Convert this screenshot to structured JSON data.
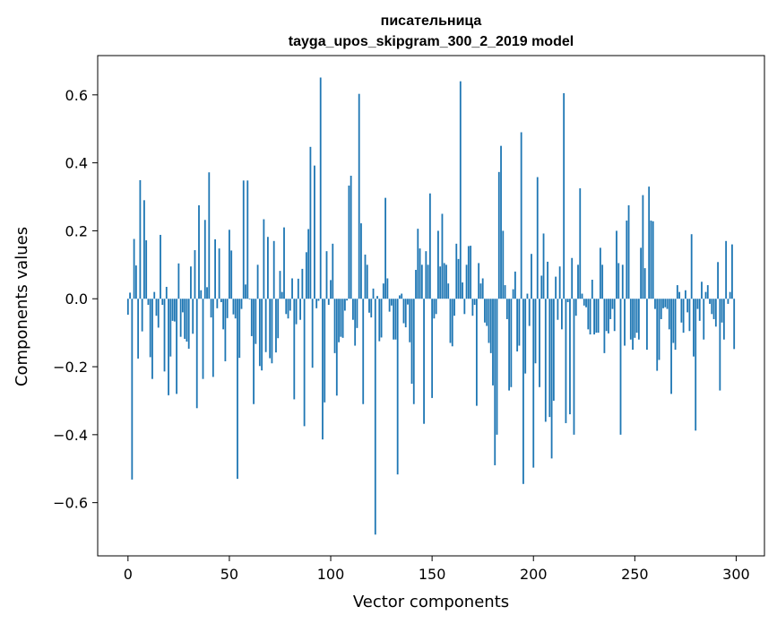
{
  "chart_data": {
    "type": "bar",
    "title": "писательница",
    "subtitle": "tayga_upos_skipgram_300_2_2019 model",
    "xlabel": "Vector components",
    "ylabel": "Components values",
    "xlim": [
      -14.95,
      313.95
    ],
    "ylim": [
      -0.7566,
      0.7156
    ],
    "xticks": [
      0,
      50,
      100,
      150,
      200,
      250,
      300
    ],
    "xtick_labels": [
      "0",
      "50",
      "100",
      "150",
      "200",
      "250",
      "300"
    ],
    "yticks": [
      -0.6,
      -0.4,
      -0.2,
      0.0,
      0.2,
      0.4,
      0.6
    ],
    "ytick_labels": [
      "−0.6",
      "−0.4",
      "−0.2",
      "0.0",
      "0.2",
      "0.4",
      "0.6"
    ],
    "bar_color": "#1f77b4",
    "grid": false,
    "values": [
      -0.047,
      0.018,
      -0.532,
      0.176,
      0.098,
      -0.176,
      0.349,
      -0.096,
      0.29,
      0.172,
      -0.018,
      -0.172,
      -0.236,
      0.02,
      -0.05,
      -0.085,
      0.188,
      -0.018,
      -0.214,
      0.035,
      -0.284,
      -0.17,
      -0.065,
      -0.067,
      -0.28,
      0.104,
      -0.112,
      -0.04,
      -0.118,
      -0.126,
      -0.147,
      0.095,
      -0.103,
      0.143,
      -0.322,
      0.275,
      0.025,
      -0.236,
      0.232,
      0.034,
      0.372,
      -0.055,
      -0.23,
      0.175,
      -0.028,
      0.148,
      -0.01,
      -0.09,
      -0.184,
      -0.057,
      0.203,
      0.142,
      -0.046,
      -0.058,
      -0.53,
      -0.174,
      -0.03,
      0.348,
      0.042,
      0.348,
      -0.002,
      -0.11,
      -0.31,
      -0.133,
      0.1,
      -0.198,
      -0.211,
      0.234,
      -0.157,
      0.182,
      -0.175,
      -0.19,
      0.17,
      -0.158,
      -0.116,
      0.082,
      0.02,
      0.21,
      -0.045,
      -0.058,
      -0.035,
      0.06,
      -0.296,
      -0.075,
      0.059,
      -0.062,
      0.088,
      -0.375,
      0.137,
      0.205,
      0.447,
      -0.203,
      0.392,
      -0.028,
      -0.006,
      0.651,
      -0.414,
      -0.305,
      0.14,
      -0.018,
      0.055,
      0.162,
      -0.16,
      -0.285,
      -0.128,
      -0.112,
      -0.115,
      -0.035,
      -0.005,
      0.333,
      0.362,
      -0.062,
      -0.138,
      -0.086,
      0.603,
      0.222,
      -0.31,
      0.13,
      0.1,
      -0.041,
      -0.055,
      0.03,
      -0.694,
      0.008,
      -0.125,
      -0.114,
      0.045,
      0.297,
      0.06,
      -0.038,
      -0.02,
      -0.12,
      -0.12,
      -0.517,
      0.01,
      0.015,
      -0.072,
      -0.084,
      -0.017,
      -0.128,
      -0.25,
      -0.31,
      0.085,
      0.206,
      0.148,
      0.1,
      -0.368,
      0.14,
      0.1,
      0.31,
      -0.292,
      -0.058,
      -0.045,
      0.2,
      0.095,
      0.25,
      0.105,
      0.1,
      0.045,
      -0.13,
      -0.14,
      -0.05,
      0.162,
      0.117,
      0.64,
      0.048,
      -0.045,
      0.1,
      0.155,
      0.156,
      -0.05,
      -0.018,
      -0.315,
      0.105,
      0.045,
      0.06,
      -0.07,
      -0.08,
      -0.13,
      -0.16,
      -0.255,
      -0.49,
      -0.4,
      0.373,
      0.45,
      0.2,
      0.04,
      -0.06,
      -0.27,
      -0.26,
      0.028,
      0.08,
      -0.155,
      -0.138,
      0.49,
      -0.545,
      -0.22,
      0.015,
      -0.08,
      0.132,
      -0.497,
      -0.19,
      0.358,
      -0.26,
      0.068,
      0.192,
      -0.362,
      0.109,
      -0.348,
      -0.47,
      -0.3,
      0.065,
      -0.062,
      0.095,
      -0.09,
      0.605,
      -0.366,
      -0.01,
      -0.34,
      0.12,
      -0.4,
      -0.05,
      0.1,
      0.325,
      0.015,
      -0.02,
      -0.025,
      -0.09,
      -0.105,
      0.056,
      -0.105,
      -0.1,
      -0.1,
      0.15,
      0.1,
      -0.16,
      -0.095,
      -0.102,
      -0.06,
      -0.03,
      -0.095,
      0.2,
      0.105,
      -0.4,
      0.1,
      -0.138,
      0.23,
      0.275,
      -0.12,
      -0.15,
      -0.115,
      -0.1,
      -0.12,
      0.15,
      0.305,
      0.09,
      -0.15,
      0.33,
      0.23,
      0.228,
      -0.03,
      -0.212,
      -0.18,
      -0.06,
      -0.028,
      -0.025,
      -0.03,
      -0.09,
      -0.28,
      -0.13,
      -0.15,
      0.04,
      0.02,
      -0.07,
      -0.1,
      0.025,
      -0.04,
      -0.095,
      0.19,
      -0.17,
      -0.388,
      -0.03,
      -0.065,
      0.05,
      -0.12,
      0.02,
      0.04,
      -0.015,
      -0.045,
      -0.06,
      -0.082,
      0.108,
      -0.27,
      -0.07,
      -0.12,
      0.17,
      -0.015,
      0.02,
      0.16,
      -0.148
    ]
  }
}
